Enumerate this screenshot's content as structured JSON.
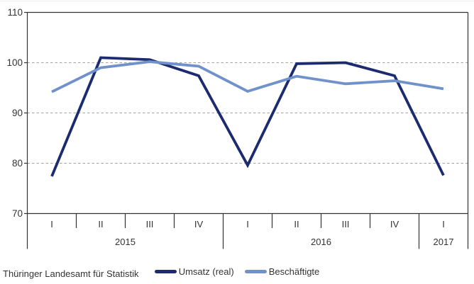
{
  "chart_data": {
    "type": "line",
    "title": "",
    "x_groups": [
      {
        "year": "2015",
        "quarters": [
          "I",
          "II",
          "III",
          "IV"
        ]
      },
      {
        "year": "2016",
        "quarters": [
          "I",
          "II",
          "III",
          "IV"
        ]
      },
      {
        "year": "2017",
        "quarters": [
          "I"
        ]
      }
    ],
    "categories": [
      "2015-I",
      "2015-II",
      "2015-III",
      "2015-IV",
      "2016-I",
      "2016-II",
      "2016-III",
      "2016-IV",
      "2017-I"
    ],
    "series": [
      {
        "name": "Umsatz (real)",
        "color": "#1c2b6f",
        "stroke_width": 3.8,
        "values": [
          77.4,
          101.0,
          100.6,
          97.4,
          79.6,
          99.8,
          100.0,
          97.4,
          77.6
        ]
      },
      {
        "name": "Beschäftigte",
        "color": "#7091c9",
        "stroke_width": 3.8,
        "values": [
          94.2,
          99.0,
          100.2,
          99.3,
          94.3,
          97.3,
          95.8,
          96.4,
          94.8
        ]
      }
    ],
    "ylim": [
      70,
      110
    ],
    "yticks": [
      70,
      80,
      90,
      100,
      110
    ],
    "grid": {
      "horizontal_dashed_at": [
        80,
        90,
        100
      ]
    },
    "legend_position": "bottom-center",
    "axis_color": "#333333",
    "grid_color": "#a3a3a3",
    "text_color": "#333333"
  },
  "footer": {
    "source": "Thüringer Landesamt für Statistik"
  }
}
